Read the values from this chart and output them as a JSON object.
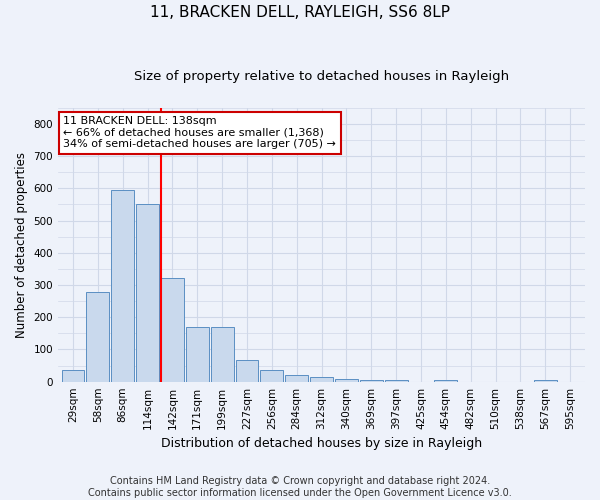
{
  "title": "11, BRACKEN DELL, RAYLEIGH, SS6 8LP",
  "subtitle": "Size of property relative to detached houses in Rayleigh",
  "xlabel": "Distribution of detached houses by size in Rayleigh",
  "ylabel": "Number of detached properties",
  "bin_labels": [
    "29sqm",
    "58sqm",
    "86sqm",
    "114sqm",
    "142sqm",
    "171sqm",
    "199sqm",
    "227sqm",
    "256sqm",
    "284sqm",
    "312sqm",
    "340sqm",
    "369sqm",
    "397sqm",
    "425sqm",
    "454sqm",
    "482sqm",
    "510sqm",
    "538sqm",
    "567sqm",
    "595sqm"
  ],
  "bar_heights": [
    35,
    278,
    595,
    550,
    322,
    170,
    170,
    68,
    35,
    20,
    15,
    8,
    5,
    5,
    0,
    5,
    0,
    0,
    0,
    5,
    0
  ],
  "bar_color": "#c9d9ed",
  "bar_edge_color": "#5a8fc3",
  "red_line_index": 4,
  "annotation_text": "11 BRACKEN DELL: 138sqm\n← 66% of detached houses are smaller (1,368)\n34% of semi-detached houses are larger (705) →",
  "annotation_box_color": "#ffffff",
  "annotation_box_edge_color": "#cc0000",
  "ylim": [
    0,
    850
  ],
  "yticks": [
    0,
    100,
    200,
    300,
    400,
    500,
    600,
    700,
    800
  ],
  "grid_color": "#d0d8e8",
  "bg_color": "#eef2fa",
  "footer": "Contains HM Land Registry data © Crown copyright and database right 2024.\nContains public sector information licensed under the Open Government Licence v3.0.",
  "title_fontsize": 11,
  "subtitle_fontsize": 9.5,
  "xlabel_fontsize": 9,
  "ylabel_fontsize": 8.5,
  "tick_fontsize": 7.5,
  "footer_fontsize": 7
}
